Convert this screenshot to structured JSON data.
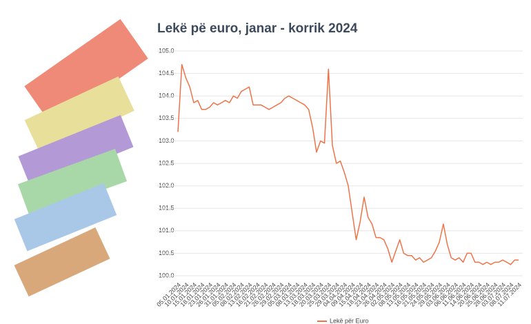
{
  "chart_data": {
    "type": "line",
    "title": "Lekë pë euro, janar - korrik 2024",
    "categories": [
      "05.01.2024",
      null,
      "10.01.2024",
      null,
      "15.01.2024",
      null,
      "18.01.2024",
      null,
      "23.01.2024",
      null,
      "26.01.2024",
      null,
      "31.01.2024",
      null,
      "05.02.2024",
      null,
      "08.02.2024",
      null,
      "13.02.2024",
      null,
      "16.02.2024",
      null,
      "21.02.2024",
      null,
      "26.02.2024",
      null,
      "29.02.2024",
      null,
      "05.03.2024",
      null,
      "08.03.2024",
      null,
      "13.03.2024",
      null,
      "18.03.2024",
      null,
      "20.03.2024",
      null,
      "25.03.2024",
      null,
      "29.03.2024",
      null,
      "04.04.2024",
      null,
      "09.04.2024",
      null,
      "15.04.2024",
      null,
      "18.04.2024",
      null,
      "23.04.2024",
      null,
      "26.04.2024",
      null,
      "02.05.2024",
      null,
      "08.05.2024",
      null,
      "13.05.2024",
      null,
      "16.05.2024",
      null,
      "21.05.2024",
      null,
      "24.05.2024",
      null,
      "29.05.2024",
      null,
      "03.06.2024",
      null,
      "06.06.2024",
      null,
      "11.06.2024",
      null,
      "14.06.2024",
      null,
      "20.06.2024",
      null,
      "25.06.2024",
      null,
      "28.06.2024",
      null,
      "03.07.2024",
      null,
      "08.07.2024",
      null,
      "11.07.2024"
    ],
    "series": [
      {
        "name": "Lekë për Euro",
        "color": "#ee7348",
        "values": [
          103.2,
          104.7,
          104.4,
          104.2,
          103.85,
          103.9,
          103.7,
          103.7,
          103.75,
          103.85,
          103.8,
          103.85,
          103.9,
          103.85,
          104.0,
          103.95,
          104.1,
          104.15,
          104.2,
          103.8,
          103.8,
          103.8,
          103.75,
          103.7,
          103.75,
          103.8,
          103.85,
          103.95,
          104.0,
          103.95,
          103.9,
          103.85,
          103.8,
          103.7,
          103.3,
          102.75,
          103.0,
          102.95,
          104.6,
          102.9,
          102.5,
          102.55,
          102.3,
          102.0,
          101.4,
          100.8,
          101.2,
          101.75,
          101.3,
          101.15,
          100.85,
          100.85,
          100.8,
          100.6,
          100.3,
          100.55,
          100.8,
          100.5,
          100.45,
          100.45,
          100.35,
          100.4,
          100.3,
          100.35,
          100.4,
          100.55,
          100.75,
          101.15,
          100.7,
          100.4,
          100.35,
          100.4,
          100.3,
          100.5,
          100.5,
          100.3,
          100.3,
          100.25,
          100.3,
          100.25,
          100.3,
          100.3,
          100.35,
          100.3,
          100.25,
          100.35,
          100.35
        ]
      }
    ],
    "ylim": [
      100.0,
      105.0
    ],
    "yticks": [
      {
        "value": 100.0,
        "label": "100.0"
      },
      {
        "value": 100.5,
        "label": "100.5"
      },
      {
        "value": 101.0,
        "label": "101.0"
      },
      {
        "value": 101.5,
        "label": "101.5"
      },
      {
        "value": 102.0,
        "label": "102.0"
      },
      {
        "value": 102.5,
        "label": "102.5"
      },
      {
        "value": 103.0,
        "label": "103.0"
      },
      {
        "value": 103.5,
        "label": "103.5"
      },
      {
        "value": 104.0,
        "label": "104.0"
      },
      {
        "value": 104.5,
        "label": "104.5"
      },
      {
        "value": 105.0,
        "label": "105.0"
      }
    ],
    "grid": true,
    "legend": "bottom"
  }
}
